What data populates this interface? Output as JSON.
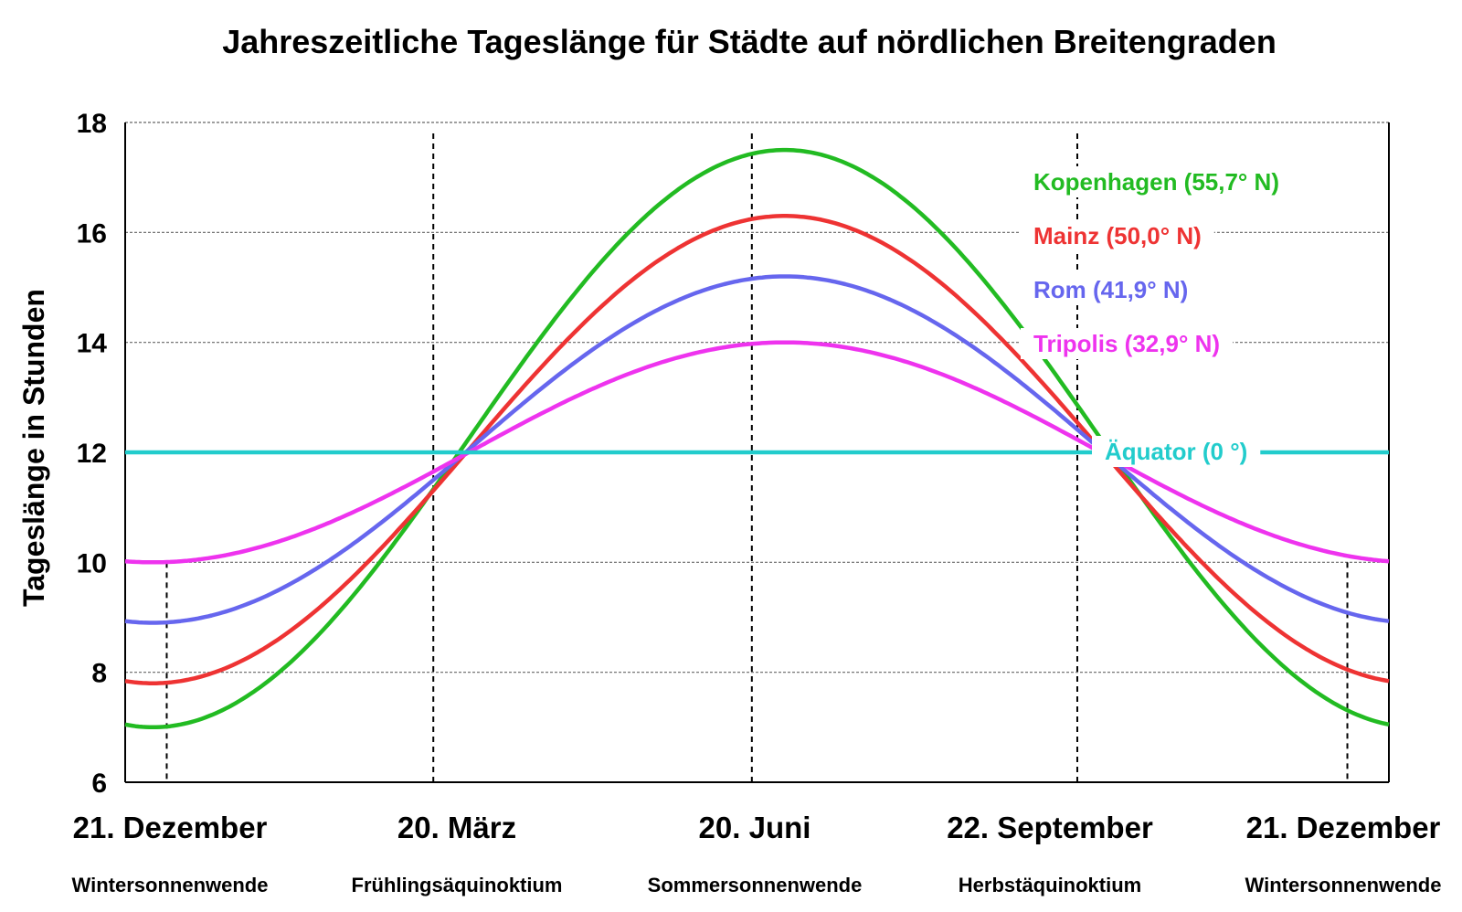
{
  "chart_data": {
    "type": "line",
    "title": "Jahreszeitliche Tageslänge für Städte auf nördlichen Breitengraden",
    "ylabel": "Tageslänge in Stunden",
    "xlabel": "",
    "ylim": [
      6,
      18
    ],
    "yticks": [
      "6",
      "8",
      "10",
      "12",
      "14",
      "16",
      "18"
    ],
    "grid": true,
    "legend_placement": "right",
    "x_range_days": [
      0,
      365
    ],
    "x_ticks": [
      {
        "day": 0,
        "label": "21. Dezember",
        "sublabel": "Wintersonnenwende",
        "dashed": false
      },
      {
        "day": 89,
        "label": "20. März",
        "sublabel": "Frühlingsäquinoktium",
        "dashed": true
      },
      {
        "day": 181,
        "label": "20. Juni",
        "sublabel": "Sommersonnenwende",
        "dashed": true
      },
      {
        "day": 275,
        "label": "22. September",
        "sublabel": "Herbstäquinoktium",
        "dashed": true
      },
      {
        "day": 365,
        "label": "21. Dezember",
        "sublabel": "Wintersonnenwende",
        "dashed": false
      }
    ],
    "series": [
      {
        "name": "Kopenhagen (55,7° N)",
        "color": "#22bb22",
        "min": 7.0,
        "max": 17.5
      },
      {
        "name": "Mainz (50,0° N)",
        "color": "#ee3333",
        "min": 7.8,
        "max": 16.3
      },
      {
        "name": "Rom (41,9° N)",
        "color": "#6666ee",
        "min": 8.9,
        "max": 15.2
      },
      {
        "name": "Tripolis  (32,9° N)",
        "color": "#ee33ee",
        "min": 10.0,
        "max": 14.0
      },
      {
        "name": "Äquator (0 °)",
        "color": "#22cccc",
        "min": 12.0,
        "max": 12.0
      }
    ]
  }
}
